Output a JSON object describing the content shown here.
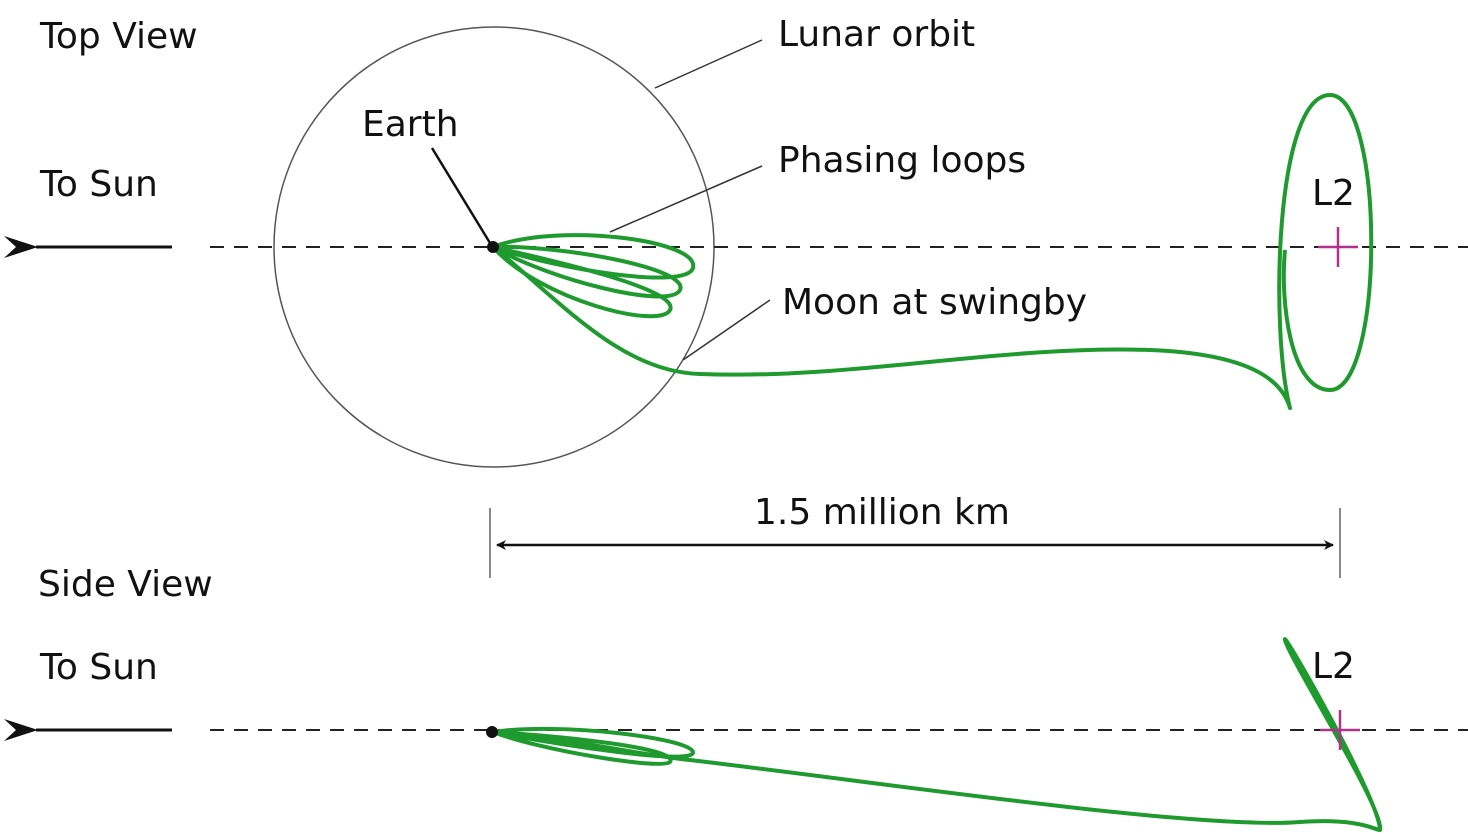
{
  "top_view": {
    "title": "Top View",
    "lunar_orbit": "Lunar orbit",
    "earth": "Earth",
    "to_sun": "To Sun",
    "phasing_loops": "Phasing loops",
    "l2": "L2",
    "moon_at_swingby": "Moon at swingby"
  },
  "scale": {
    "label": "1.5 million km"
  },
  "side_view": {
    "title": "Side View",
    "to_sun": "To Sun",
    "l2": "L2"
  }
}
